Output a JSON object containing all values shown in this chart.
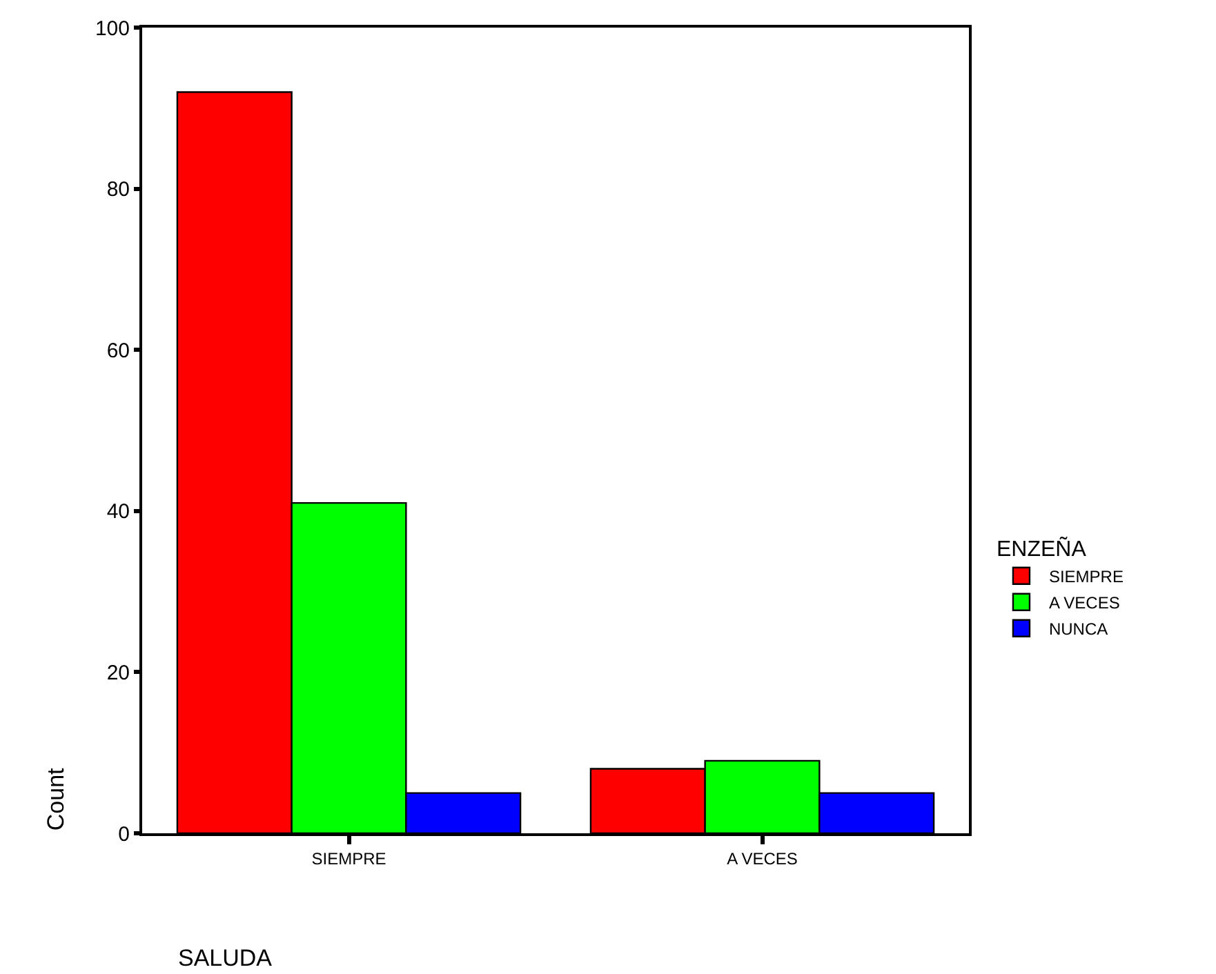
{
  "chart_data": {
    "type": "bar",
    "xlabel": "SALUDA",
    "ylabel": "Count",
    "legend_title": "ENZEÑA",
    "categories": [
      "SIEMPRE",
      "A VECES"
    ],
    "series": [
      {
        "name": "SIEMPRE",
        "color": "#ff0000",
        "values": [
          92,
          8
        ]
      },
      {
        "name": "A VECES",
        "color": "#00ff00",
        "values": [
          41,
          9
        ]
      },
      {
        "name": "NUNCA",
        "color": "#0000ff",
        "values": [
          5,
          5
        ]
      }
    ],
    "ylim": [
      0,
      100
    ],
    "yticks": [
      0,
      20,
      40,
      60,
      80,
      100
    ],
    "legend": "right"
  }
}
